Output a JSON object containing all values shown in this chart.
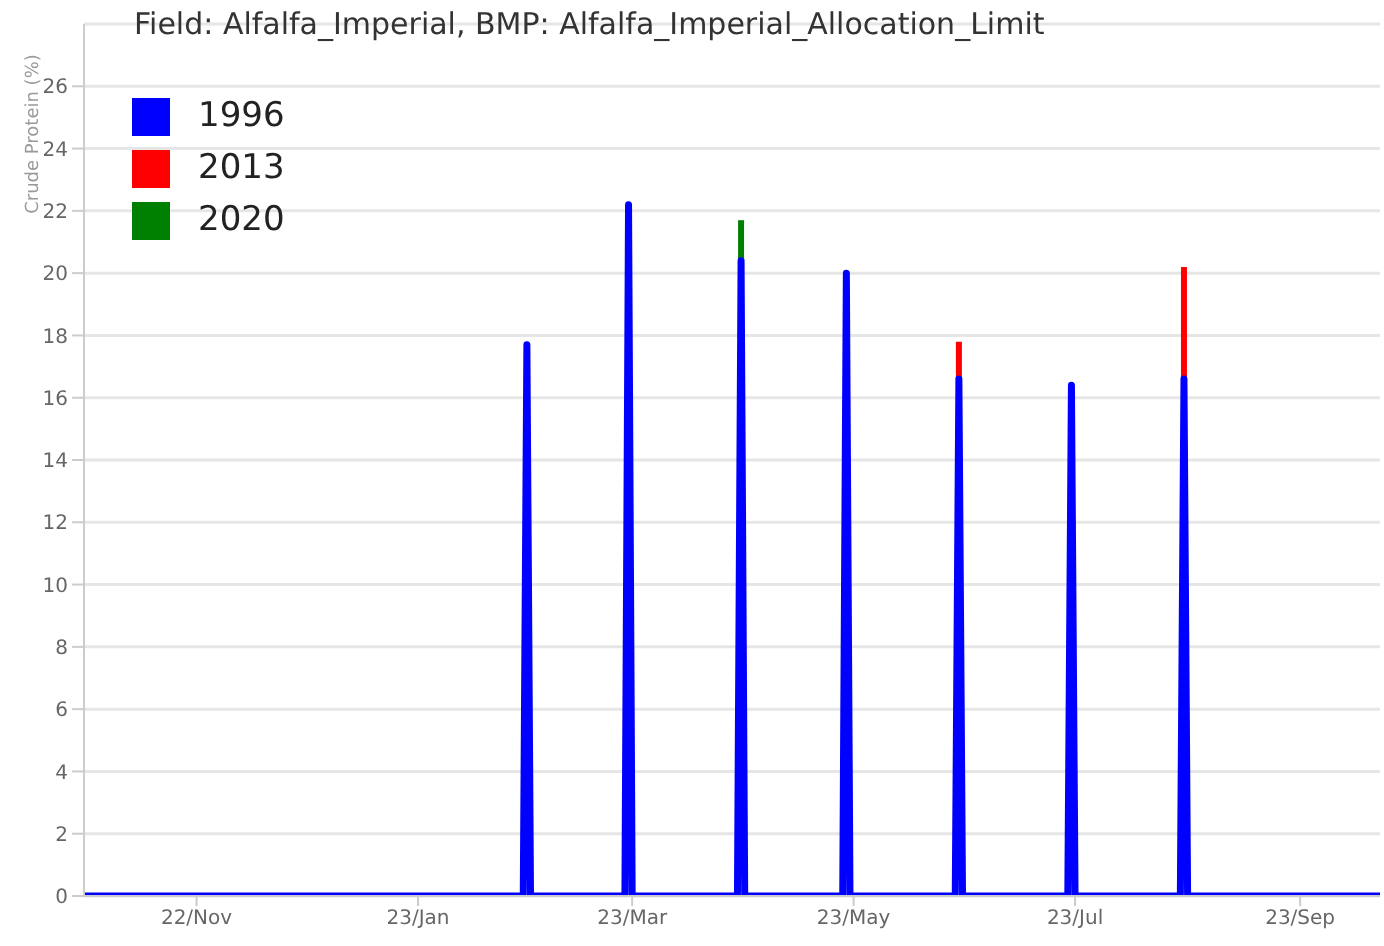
{
  "chart_data": {
    "type": "line",
    "title": "Field: Alfalfa_Imperial, BMP: Alfalfa_Imperial_Allocation_Limit",
    "ylabel": "Crude Protein (%)",
    "xlim": [
      "2022-10-01",
      "2023-09-23"
    ],
    "xticks": [
      {
        "value": "2022-11",
        "label": "22/Nov"
      },
      {
        "value": "2023-01",
        "label": "23/Jan"
      },
      {
        "value": "2023-03",
        "label": "23/Mar"
      },
      {
        "value": "2023-05",
        "label": "23/May"
      },
      {
        "value": "2023-07",
        "label": "23/Jul"
      },
      {
        "value": "2023-09",
        "label": "23/Sep"
      }
    ],
    "ylim": [
      0,
      28
    ],
    "yticks": [
      0,
      2,
      4,
      6,
      8,
      10,
      12,
      14,
      16,
      18,
      20,
      22,
      24,
      26
    ],
    "grid": "y",
    "legend": "top left",
    "x": [
      "2022-10-01",
      "2023-01-30",
      "2023-01-31",
      "2023-02-01",
      "2023-02-27",
      "2023-02-28",
      "2023-03-01",
      "2023-03-30",
      "2023-03-31",
      "2023-04-01",
      "2023-04-28",
      "2023-04-29",
      "2023-04-30",
      "2023-05-29",
      "2023-05-30",
      "2023-05-31",
      "2023-06-29",
      "2023-06-30",
      "2023-07-01",
      "2023-07-30",
      "2023-07-31",
      "2023-08-01",
      "2023-09-23"
    ],
    "series": [
      {
        "name": "1996",
        "color": "#0000ff",
        "values": [
          0,
          0,
          17.7,
          0,
          0,
          22.2,
          0,
          0,
          20.4,
          0,
          0,
          20.0,
          0,
          0,
          16.6,
          0,
          0,
          16.4,
          0,
          0,
          16.6,
          0,
          0
        ]
      },
      {
        "name": "2013",
        "color": "#ff0000",
        "x": [
          "2023-05-30",
          "2023-05-30",
          "2023-06-30",
          "2023-07-31",
          "2023-07-31"
        ],
        "values": [
          16.6,
          17.8,
          null,
          16.6,
          20.2
        ]
      },
      {
        "name": "2020",
        "color": "#008000",
        "x": [
          "2023-03-31",
          "2023-03-31"
        ],
        "values": [
          20.4,
          21.7
        ]
      }
    ]
  }
}
